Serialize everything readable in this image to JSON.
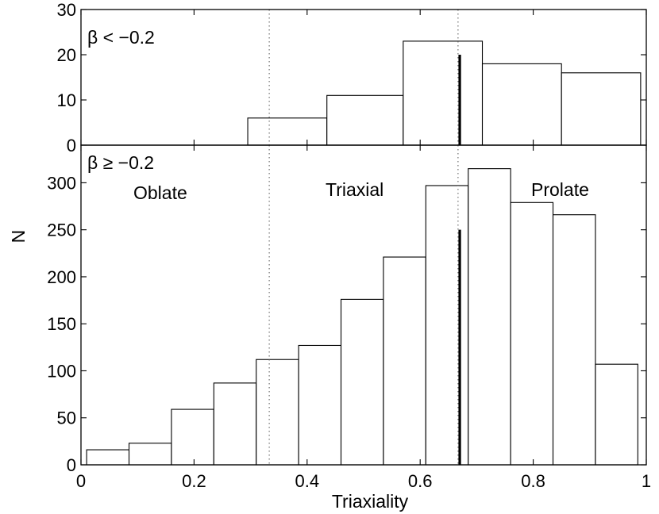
{
  "chart_data": [
    {
      "type": "bar",
      "panel": "top",
      "annotation": "β < −0.2",
      "bins": [
        {
          "x0": 0.295,
          "x1": 0.435,
          "value": 6
        },
        {
          "x0": 0.435,
          "x1": 0.57,
          "value": 11
        },
        {
          "x0": 0.57,
          "x1": 0.71,
          "value": 23
        },
        {
          "x0": 0.71,
          "x1": 0.85,
          "value": 18
        },
        {
          "x0": 0.85,
          "x1": 0.99,
          "value": 16
        }
      ],
      "marker": {
        "x": 0.67,
        "y": 20
      },
      "reference_lines": [
        0.333,
        0.667
      ],
      "xlim": [
        0,
        1
      ],
      "ylim": [
        0,
        30
      ],
      "yticks": [
        0,
        10,
        20,
        30
      ],
      "ytick_labels": [
        "0",
        "10",
        "20",
        "30"
      ],
      "grid": false
    },
    {
      "type": "bar",
      "panel": "bottom",
      "annotation": "β ≥ −0.2",
      "region_labels": [
        "Oblate",
        "Triaxial",
        "Prolate"
      ],
      "bins": [
        {
          "x0": 0.01,
          "x1": 0.085,
          "value": 16
        },
        {
          "x0": 0.085,
          "x1": 0.16,
          "value": 23
        },
        {
          "x0": 0.16,
          "x1": 0.235,
          "value": 59
        },
        {
          "x0": 0.235,
          "x1": 0.31,
          "value": 87
        },
        {
          "x0": 0.31,
          "x1": 0.385,
          "value": 112
        },
        {
          "x0": 0.385,
          "x1": 0.46,
          "value": 127
        },
        {
          "x0": 0.46,
          "x1": 0.535,
          "value": 176
        },
        {
          "x0": 0.535,
          "x1": 0.61,
          "value": 221
        },
        {
          "x0": 0.61,
          "x1": 0.685,
          "value": 297
        },
        {
          "x0": 0.685,
          "x1": 0.76,
          "value": 315
        },
        {
          "x0": 0.76,
          "x1": 0.835,
          "value": 279
        },
        {
          "x0": 0.835,
          "x1": 0.91,
          "value": 266
        },
        {
          "x0": 0.91,
          "x1": 0.985,
          "value": 107
        }
      ],
      "marker": {
        "x": 0.67,
        "y": 250
      },
      "reference_lines": [
        0.333,
        0.667
      ],
      "xlim": [
        0,
        1
      ],
      "ylim": [
        0,
        340
      ],
      "xticks": [
        0,
        0.2,
        0.4,
        0.6,
        0.8,
        1
      ],
      "xtick_labels": [
        "0",
        "0.2",
        "0.4",
        "0.6",
        "0.8",
        "1"
      ],
      "yticks": [
        0,
        50,
        100,
        150,
        200,
        250,
        300
      ],
      "ytick_labels": [
        "0",
        "50",
        "100",
        "150",
        "200",
        "250",
        "300"
      ],
      "xlabel": "Triaxiality",
      "ylabel": "N",
      "grid": false
    }
  ]
}
